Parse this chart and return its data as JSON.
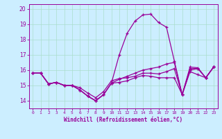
{
  "title": "",
  "xlabel": "Windchill (Refroidissement éolien,°C)",
  "background_color": "#cceeff",
  "grid_color": "#aaddcc",
  "line_color": "#990099",
  "xlim": [
    -0.5,
    23.5
  ],
  "ylim": [
    13.5,
    20.3
  ],
  "yticks": [
    14,
    15,
    16,
    17,
    18,
    19,
    20
  ],
  "xticks": [
    0,
    1,
    2,
    3,
    4,
    5,
    6,
    7,
    8,
    9,
    10,
    11,
    12,
    13,
    14,
    15,
    16,
    17,
    18,
    19,
    20,
    21,
    22,
    23
  ],
  "series1_y": [
    15.8,
    15.8,
    15.1,
    15.2,
    15.0,
    15.0,
    14.7,
    14.3,
    14.0,
    14.4,
    15.15,
    15.2,
    15.3,
    15.5,
    15.65,
    15.6,
    15.5,
    15.5,
    15.5,
    14.4,
    15.9,
    15.7,
    15.5,
    16.2
  ],
  "series2_y": [
    15.8,
    15.8,
    15.1,
    15.2,
    15.0,
    15.0,
    14.7,
    14.3,
    14.0,
    14.4,
    15.15,
    17.0,
    18.4,
    19.2,
    19.6,
    19.65,
    19.1,
    18.8,
    16.6,
    14.4,
    16.2,
    16.15,
    15.5,
    16.2
  ],
  "series3_y": [
    15.8,
    15.8,
    15.1,
    15.2,
    15.0,
    15.0,
    14.85,
    14.5,
    14.2,
    14.6,
    15.3,
    15.45,
    15.5,
    15.6,
    15.8,
    15.8,
    15.75,
    15.9,
    16.1,
    14.4,
    16.0,
    16.1,
    15.5,
    16.2
  ],
  "series4_y": [
    15.8,
    15.8,
    15.1,
    15.2,
    15.0,
    15.0,
    14.7,
    14.3,
    14.0,
    14.4,
    15.15,
    15.4,
    15.6,
    15.8,
    16.0,
    16.1,
    16.2,
    16.4,
    16.5,
    14.4,
    16.1,
    16.1,
    15.5,
    16.2
  ]
}
